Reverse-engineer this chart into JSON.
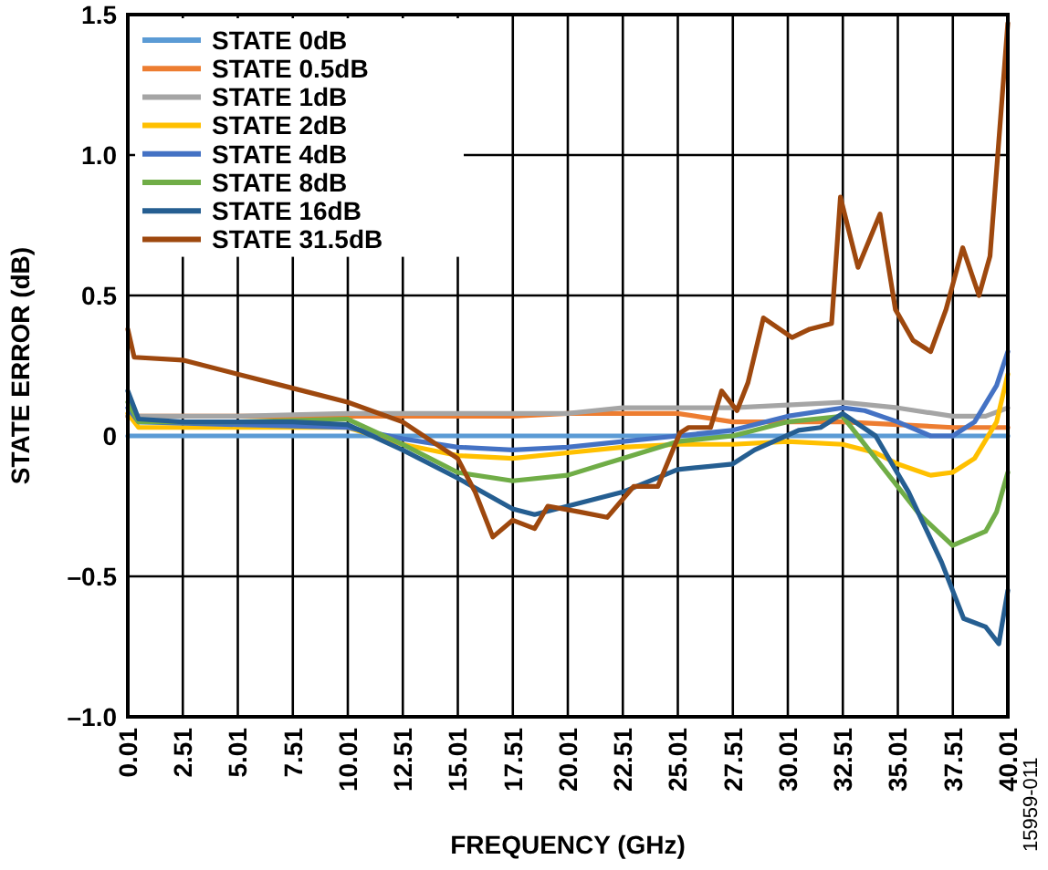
{
  "chart_data": {
    "type": "line",
    "xlabel": "FREQUENCY (GHz)",
    "ylabel": "STATE ERROR (dB)",
    "xlim": [
      0.01,
      40.01
    ],
    "ylim": [
      -1.0,
      1.5
    ],
    "xticks": [
      0.01,
      2.51,
      5.01,
      7.51,
      10.01,
      12.51,
      15.01,
      17.51,
      20.01,
      22.51,
      25.01,
      27.51,
      30.01,
      32.51,
      35.01,
      37.51,
      40.01
    ],
    "yticks": [
      {
        "value": -1,
        "label": "–1.0"
      },
      {
        "value": -0.5,
        "label": "–0.5"
      },
      {
        "value": 0,
        "label": "0"
      },
      {
        "value": 0.5,
        "label": "0.5"
      },
      {
        "value": 1,
        "label": "1.0"
      },
      {
        "value": 1.5,
        "label": "1.5"
      }
    ],
    "grid": true,
    "legend": "top left",
    "marker": "none",
    "line_style": "solid",
    "annotations": [
      "15959-011"
    ],
    "series": [
      {
        "name": "STATE 0dB",
        "color": "#5b9bd5",
        "x": [
          0.01,
          5,
          10,
          15,
          20,
          25,
          30,
          35,
          40.01
        ],
        "values": [
          0.0,
          0.0,
          0.0,
          0.0,
          0.0,
          0.0,
          0.0,
          0.0,
          0.0
        ]
      },
      {
        "name": "STATE 0.5dB",
        "color": "#ed7d31",
        "x": [
          0.01,
          5,
          10,
          15,
          17.5,
          20,
          22.5,
          25,
          27.5,
          30,
          32.5,
          35,
          37.5,
          40.01
        ],
        "values": [
          0.07,
          0.07,
          0.07,
          0.07,
          0.07,
          0.08,
          0.08,
          0.08,
          0.05,
          0.05,
          0.05,
          0.04,
          0.03,
          0.03
        ]
      },
      {
        "name": "STATE 1dB",
        "color": "#a5a5a5",
        "x": [
          0.01,
          5,
          10,
          15,
          20,
          22.5,
          25,
          27.5,
          30,
          32.5,
          35,
          37.5,
          39,
          40.01
        ],
        "values": [
          0.07,
          0.07,
          0.08,
          0.08,
          0.08,
          0.1,
          0.1,
          0.1,
          0.11,
          0.12,
          0.1,
          0.07,
          0.07,
          0.1
        ]
      },
      {
        "name": "STATE 2dB",
        "color": "#ffc000",
        "x": [
          0.01,
          0.5,
          5,
          10,
          12.5,
          15,
          17.5,
          20,
          22.5,
          25,
          27.5,
          30,
          32.5,
          34,
          35,
          36.5,
          37.5,
          38.5,
          39.5,
          40.01
        ],
        "values": [
          0.08,
          0.03,
          0.03,
          0.03,
          -0.03,
          -0.07,
          -0.08,
          -0.06,
          -0.04,
          -0.03,
          -0.03,
          -0.02,
          -0.03,
          -0.06,
          -0.1,
          -0.14,
          -0.13,
          -0.08,
          0.05,
          0.22
        ]
      },
      {
        "name": "STATE 4dB",
        "color": "#4472c4",
        "x": [
          0.01,
          0.5,
          5,
          10,
          12.5,
          15,
          17.5,
          20,
          22.5,
          25,
          27.5,
          30,
          32.5,
          33.5,
          35,
          36.5,
          37.5,
          38.5,
          39.5,
          40.01
        ],
        "values": [
          0.1,
          0.05,
          0.04,
          0.03,
          -0.01,
          -0.04,
          -0.05,
          -0.04,
          -0.02,
          0.0,
          0.02,
          0.07,
          0.1,
          0.09,
          0.05,
          0.0,
          0.0,
          0.05,
          0.18,
          0.3
        ]
      },
      {
        "name": "STATE 8dB",
        "color": "#70ad47",
        "x": [
          0.01,
          0.5,
          5,
          10,
          12.5,
          15,
          17.5,
          20,
          22.5,
          25,
          27.5,
          30,
          32.5,
          34,
          35,
          36,
          37.5,
          39,
          39.5,
          40.01
        ],
        "values": [
          0.12,
          0.05,
          0.05,
          0.06,
          -0.03,
          -0.13,
          -0.16,
          -0.14,
          -0.08,
          -0.02,
          0.0,
          0.05,
          0.07,
          -0.08,
          -0.18,
          -0.28,
          -0.39,
          -0.34,
          -0.27,
          -0.13
        ]
      },
      {
        "name": "STATE 16dB",
        "color": "#255e91",
        "x": [
          0.01,
          0.5,
          2.5,
          5,
          7.5,
          10,
          12.5,
          15,
          17.5,
          18.5,
          20,
          22.5,
          25,
          27.5,
          28.5,
          30.5,
          31.5,
          32.5,
          34,
          35.5,
          37,
          38,
          39,
          39.6,
          40.01
        ],
        "values": [
          0.16,
          0.06,
          0.05,
          0.05,
          0.05,
          0.04,
          -0.05,
          -0.15,
          -0.26,
          -0.28,
          -0.25,
          -0.2,
          -0.12,
          -0.1,
          -0.05,
          0.02,
          0.03,
          0.08,
          0.0,
          -0.2,
          -0.45,
          -0.65,
          -0.68,
          -0.74,
          -0.55
        ]
      },
      {
        "name": "STATE 31.5dB",
        "color": "#9e480e",
        "x": [
          0.01,
          0.3,
          2.5,
          5,
          7.5,
          10,
          12.5,
          15,
          15.8,
          16.6,
          17.5,
          18.5,
          19.1,
          20.5,
          21.8,
          23,
          24.1,
          25.1,
          25.5,
          26.5,
          27,
          27.7,
          28.2,
          28.9,
          30.2,
          31,
          32,
          32.4,
          33.2,
          34.2,
          34.9,
          35.7,
          36.5,
          37.2,
          37.96,
          38.7,
          39.2,
          40.01
        ],
        "values": [
          0.38,
          0.28,
          0.27,
          0.22,
          0.17,
          0.12,
          0.05,
          -0.08,
          -0.2,
          -0.36,
          -0.3,
          -0.33,
          -0.25,
          -0.27,
          -0.29,
          -0.18,
          -0.18,
          0.01,
          0.03,
          0.03,
          0.16,
          0.09,
          0.19,
          0.42,
          0.35,
          0.38,
          0.4,
          0.85,
          0.6,
          0.79,
          0.45,
          0.34,
          0.3,
          0.45,
          0.67,
          0.5,
          0.64,
          1.47
        ]
      }
    ]
  }
}
